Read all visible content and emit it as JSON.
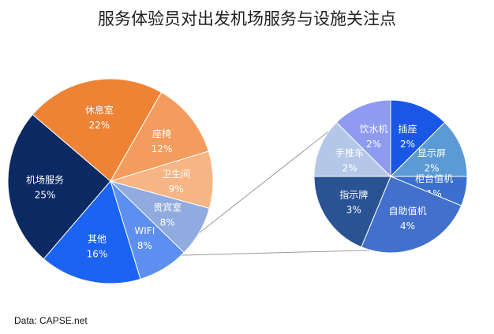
{
  "chart_data": {
    "type": "pie",
    "title": "服务体验员对出发机场服务与设施关注点",
    "source": "Data: CAPSE.net",
    "main_pie": {
      "slices": [
        {
          "name": "机场服务",
          "value": 25,
          "label": "25%",
          "color": "#0b2a63"
        },
        {
          "name": "休息室",
          "value": 22,
          "label": "22%",
          "color": "#ee8336"
        },
        {
          "name": "座椅",
          "value": 12,
          "label": "12%",
          "color": "#f49c5d"
        },
        {
          "name": "卫生间",
          "value": 9,
          "label": "9%",
          "color": "#f6b585"
        },
        {
          "name": "贵宾室",
          "value": 8,
          "label": "8%",
          "color": "#8fabe0"
        },
        {
          "name": "WIFI",
          "value": 8,
          "label": "8%",
          "color": "#5d8ff0"
        },
        {
          "name": "其他",
          "value": 16,
          "label": "16%",
          "color": "#1b63f2"
        }
      ]
    },
    "breakdown_pie": {
      "of": "其他",
      "slices": [
        {
          "name": "插座",
          "value": 2,
          "label": "2%",
          "color": "#1a57e6"
        },
        {
          "name": "显示屏",
          "value": 2,
          "label": "2%",
          "color": "#5b9ad6"
        },
        {
          "name": "柜台值机",
          "value": 1,
          "label": "1%",
          "color": "#3a6fd0"
        },
        {
          "name": "自助值机",
          "value": 4,
          "label": "4%",
          "color": "#4270cc"
        },
        {
          "name": "指示牌",
          "value": 3,
          "label": "3%",
          "color": "#2a5394"
        },
        {
          "name": "手推车",
          "value": 2,
          "label": "2%",
          "color": "#b4c7e8"
        },
        {
          "name": "饮水机",
          "value": 2,
          "label": "2%",
          "color": "#8e9bf0"
        }
      ]
    }
  }
}
